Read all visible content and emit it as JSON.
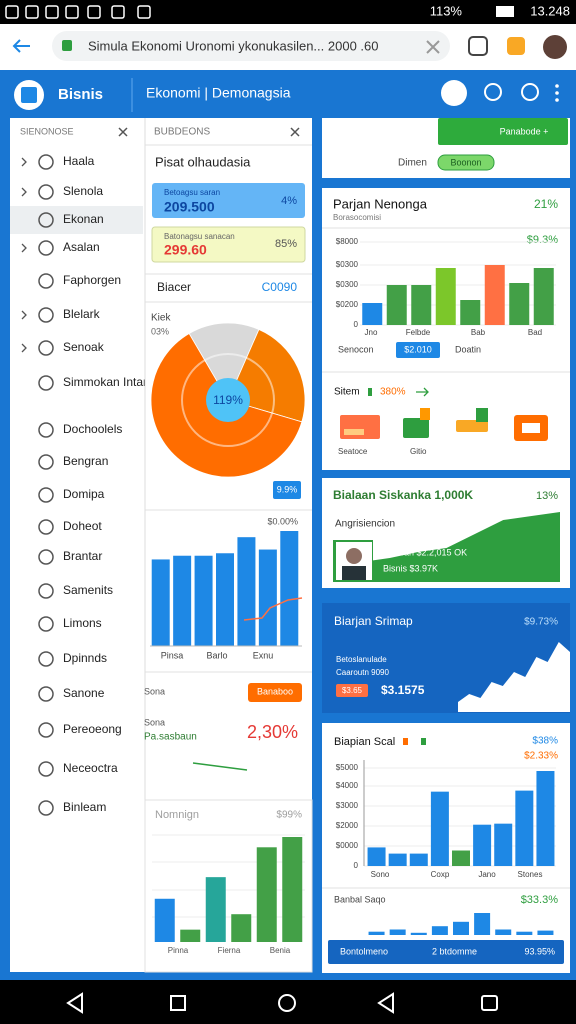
{
  "status": {
    "battery": "113%",
    "time": "13.248"
  },
  "browser": {
    "url": "Simula Ekonomi Uronomi ykonukasilen... 2000 .60"
  },
  "header": {
    "brand": "Bisnis",
    "tab": "Ekonomi | Demonagsia"
  },
  "menu": {
    "title": "SIENONOSE",
    "items": [
      "Haala",
      "Slenola",
      "Ekonan",
      "Asalan",
      "Faphorgen",
      "Blelark",
      "Senoak",
      "Simmokan Intan",
      "Dochoolels",
      "Bengran",
      "Domipa",
      "Doheot",
      "Brantar",
      "Samenits",
      "Limons",
      "Dpinnds",
      "Sanone",
      "Pereoeong",
      "Neceoctra",
      "Binleam"
    ]
  },
  "panel": {
    "title": "BUBDEONS",
    "heading": "Pisat olhaudasia",
    "card1": {
      "label": "Betoagsu saran",
      "value": "209.500",
      "pct": "4%"
    },
    "card2": {
      "label": "Batonagsu sanacan",
      "value": "299.60",
      "pct": "85%"
    },
    "summary": {
      "label": "Biacer",
      "value": "C0090"
    },
    "pie": {
      "label": "Kiek",
      "sub": "03%",
      "center": "119%",
      "badge": "9.9%",
      "values": [
        15,
        23,
        62
      ],
      "colors": [
        "#d9d9d9",
        "#f57c00",
        "#ff6d00"
      ]
    },
    "bars": {
      "label": "$0.00%",
      "values": [
        70,
        73,
        73,
        75,
        88,
        78,
        93
      ],
      "color": "#1e88e5",
      "categories": [
        "Pinsa",
        "Barlo",
        "Exnu"
      ]
    },
    "rate": {
      "badge": "Banaboo",
      "label": "Sona",
      "sub": "Pa.sasbaun",
      "value": "2,30%"
    },
    "compare": {
      "title": "Nomnign",
      "pct": "$99%",
      "values": [
        42,
        12,
        63,
        27,
        92,
        102
      ],
      "colors": [
        "#1e88e5",
        "#43a047",
        "#26a69a",
        "#43a047",
        "#43a047",
        "#43a047"
      ],
      "categories": [
        "Pinna",
        "Fierna",
        "Benia"
      ]
    }
  },
  "right": {
    "top": {
      "button": "Panabode +",
      "label": "Dimen",
      "pill": "Boonon"
    },
    "sales": {
      "title": "Parjan Nenonga",
      "pct": "21%",
      "sub": "Borasocomisi",
      "growth": "$9.3%",
      "yticks": [
        "$8000",
        "$0300",
        "$0300",
        "$0200",
        "0"
      ],
      "values": [
        22,
        40,
        40,
        57,
        25,
        60,
        42,
        57
      ],
      "colors": [
        "#1e88e5",
        "#43a047",
        "#43a047",
        "#7cc72a",
        "#43a047",
        "#ff7043",
        "#43a047",
        "#43a047"
      ],
      "categories": [
        "Jno",
        "Felbde",
        "Bab",
        "Bad"
      ],
      "legend": [
        "Senocon",
        "$2.010",
        "Doatin"
      ],
      "status": "Sitem",
      "statusValue": "380%",
      "icons": [
        "Seatoce",
        "Gitio"
      ]
    },
    "growth": {
      "title": "Bialaan Siskanka 1,000K",
      "pct": "13%",
      "sub": "Angrisiencion",
      "line1": "Benean $2.2,015 OK",
      "line2": "Bisnis $3.97K",
      "values": [
        12,
        20,
        24,
        30,
        34,
        48,
        62,
        66,
        70
      ]
    },
    "map": {
      "title": "Biarjan Srimap",
      "pct": "$9.73%",
      "line1": "Betoslanulade",
      "line2": "Caaroutn 9090",
      "badge": "$3.65",
      "value": "$3.1575",
      "values": [
        10,
        18,
        14,
        30,
        26,
        40,
        35,
        55,
        50,
        70,
        60
      ]
    },
    "scale": {
      "title": "Biapian Scal",
      "pct1": "$38%",
      "pct2": "$2.33%",
      "yticks": [
        "$5000",
        "$4000",
        "$3000",
        "$2000",
        "$0000",
        "0"
      ],
      "values": [
        18,
        12,
        12,
        72,
        15,
        40,
        41,
        73,
        92
      ],
      "colors": [
        "#1e88e5",
        "#1e88e5",
        "#1e88e5",
        "#1e88e5",
        "#43a047",
        "#1e88e5",
        "#1e88e5",
        "#1e88e5",
        "#1e88e5"
      ],
      "categories": [
        "Sono",
        "Coxp",
        "Jano",
        "Stones"
      ],
      "footer": "Banbal Saqo",
      "footerPct": "$33.3%",
      "small": [
        3,
        5,
        2,
        8,
        12,
        20,
        5,
        3,
        4
      ],
      "bar": [
        "Bontolmeno",
        "2 btdomme",
        "93.95%"
      ]
    }
  }
}
